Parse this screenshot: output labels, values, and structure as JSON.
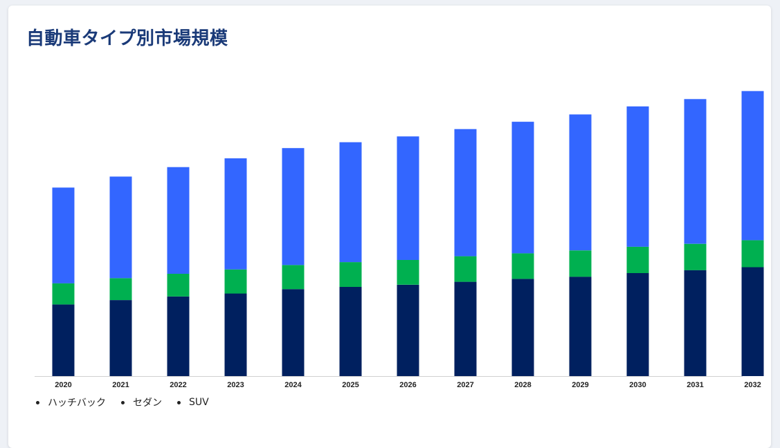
{
  "title": "自動車タイプ別市場規模",
  "legend": {
    "items": [
      {
        "label": "ハッチバック",
        "color": "#00205f"
      },
      {
        "label": "セダン",
        "color": "#00b050"
      },
      {
        "label": "SUV",
        "color": "#3366ff"
      }
    ]
  },
  "chart_data": {
    "type": "bar",
    "stacked": true,
    "categories": [
      "2020",
      "2021",
      "2022",
      "2023",
      "2024",
      "2025",
      "2026",
      "2027",
      "2028",
      "2029",
      "2030",
      "2031",
      "2032"
    ],
    "series": [
      {
        "name": "ハッチバック",
        "color": "#00205f",
        "values": [
          98,
          104,
          109,
          113,
          119,
          122,
          125,
          129,
          133,
          136,
          141,
          145,
          149
        ]
      },
      {
        "name": "セダン",
        "color": "#00b050",
        "values": [
          29,
          30,
          31,
          33,
          33,
          34,
          34,
          35,
          35,
          36,
          36,
          36,
          37
        ]
      },
      {
        "name": "SUV",
        "color": "#3366ff",
        "values": [
          131,
          139,
          146,
          152,
          160,
          164,
          169,
          174,
          180,
          186,
          192,
          198,
          204
        ]
      }
    ],
    "ylim": [
      0,
      420
    ],
    "grid": false,
    "legend_position": "bottom-left"
  }
}
